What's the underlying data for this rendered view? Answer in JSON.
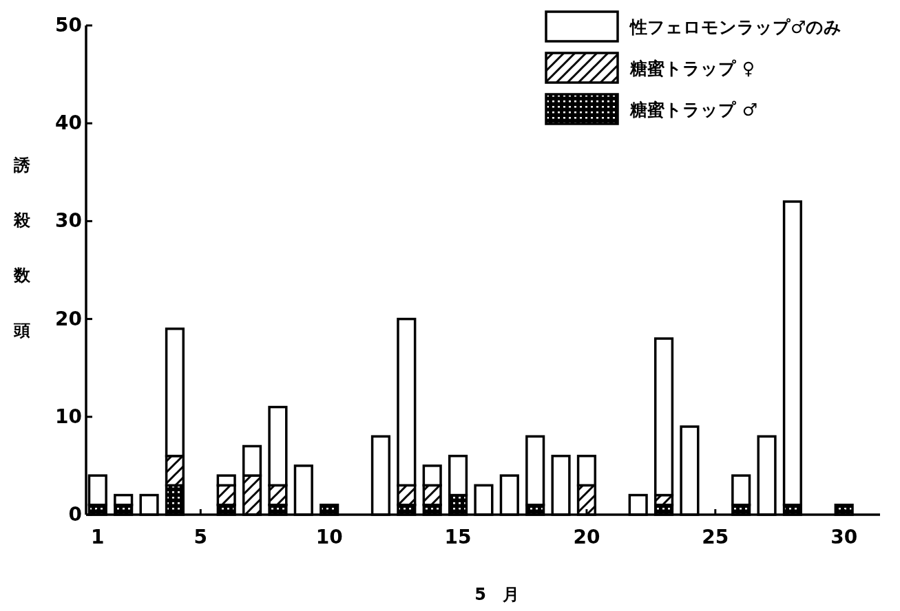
{
  "chart_data": {
    "type": "bar",
    "stacked": true,
    "xlabel": "5　月",
    "ylabel": "誘殺数頭",
    "x": [
      1,
      2,
      3,
      4,
      6,
      7,
      8,
      9,
      10,
      12,
      13,
      14,
      15,
      16,
      17,
      18,
      19,
      20,
      22,
      23,
      24,
      26,
      27,
      28,
      30
    ],
    "xlim": [
      0.55,
      31.4
    ],
    "xticks": [
      1,
      5,
      10,
      15,
      20,
      25,
      30
    ],
    "ylim": [
      0,
      50
    ],
    "yticks": [
      0,
      10,
      20,
      30,
      40,
      50
    ],
    "legend": "top right",
    "series": [
      {
        "name": "糖蜜トラップ ♂",
        "color": "#000000",
        "values": [
          1,
          1,
          0,
          3,
          1,
          0,
          1,
          0,
          1,
          0,
          1,
          1,
          2,
          0,
          0,
          1,
          0,
          0,
          0,
          1,
          0,
          1,
          0,
          1,
          1
        ]
      },
      {
        "name": "糖蜜トラップ ♀",
        "color": "#000000",
        "values": [
          0,
          0,
          0,
          3,
          2,
          4,
          2,
          0,
          0,
          0,
          2,
          2,
          0,
          0,
          0,
          0,
          0,
          3,
          0,
          1,
          0,
          0,
          0,
          0,
          0
        ]
      },
      {
        "name": "性フェロモンラップ♂のみ",
        "color": "#ffffff",
        "values": [
          3,
          1,
          2,
          13,
          1,
          3,
          8,
          5,
          0,
          8,
          17,
          2,
          4,
          3,
          4,
          7,
          6,
          3,
          2,
          16,
          9,
          3,
          8,
          31,
          0
        ]
      }
    ]
  }
}
